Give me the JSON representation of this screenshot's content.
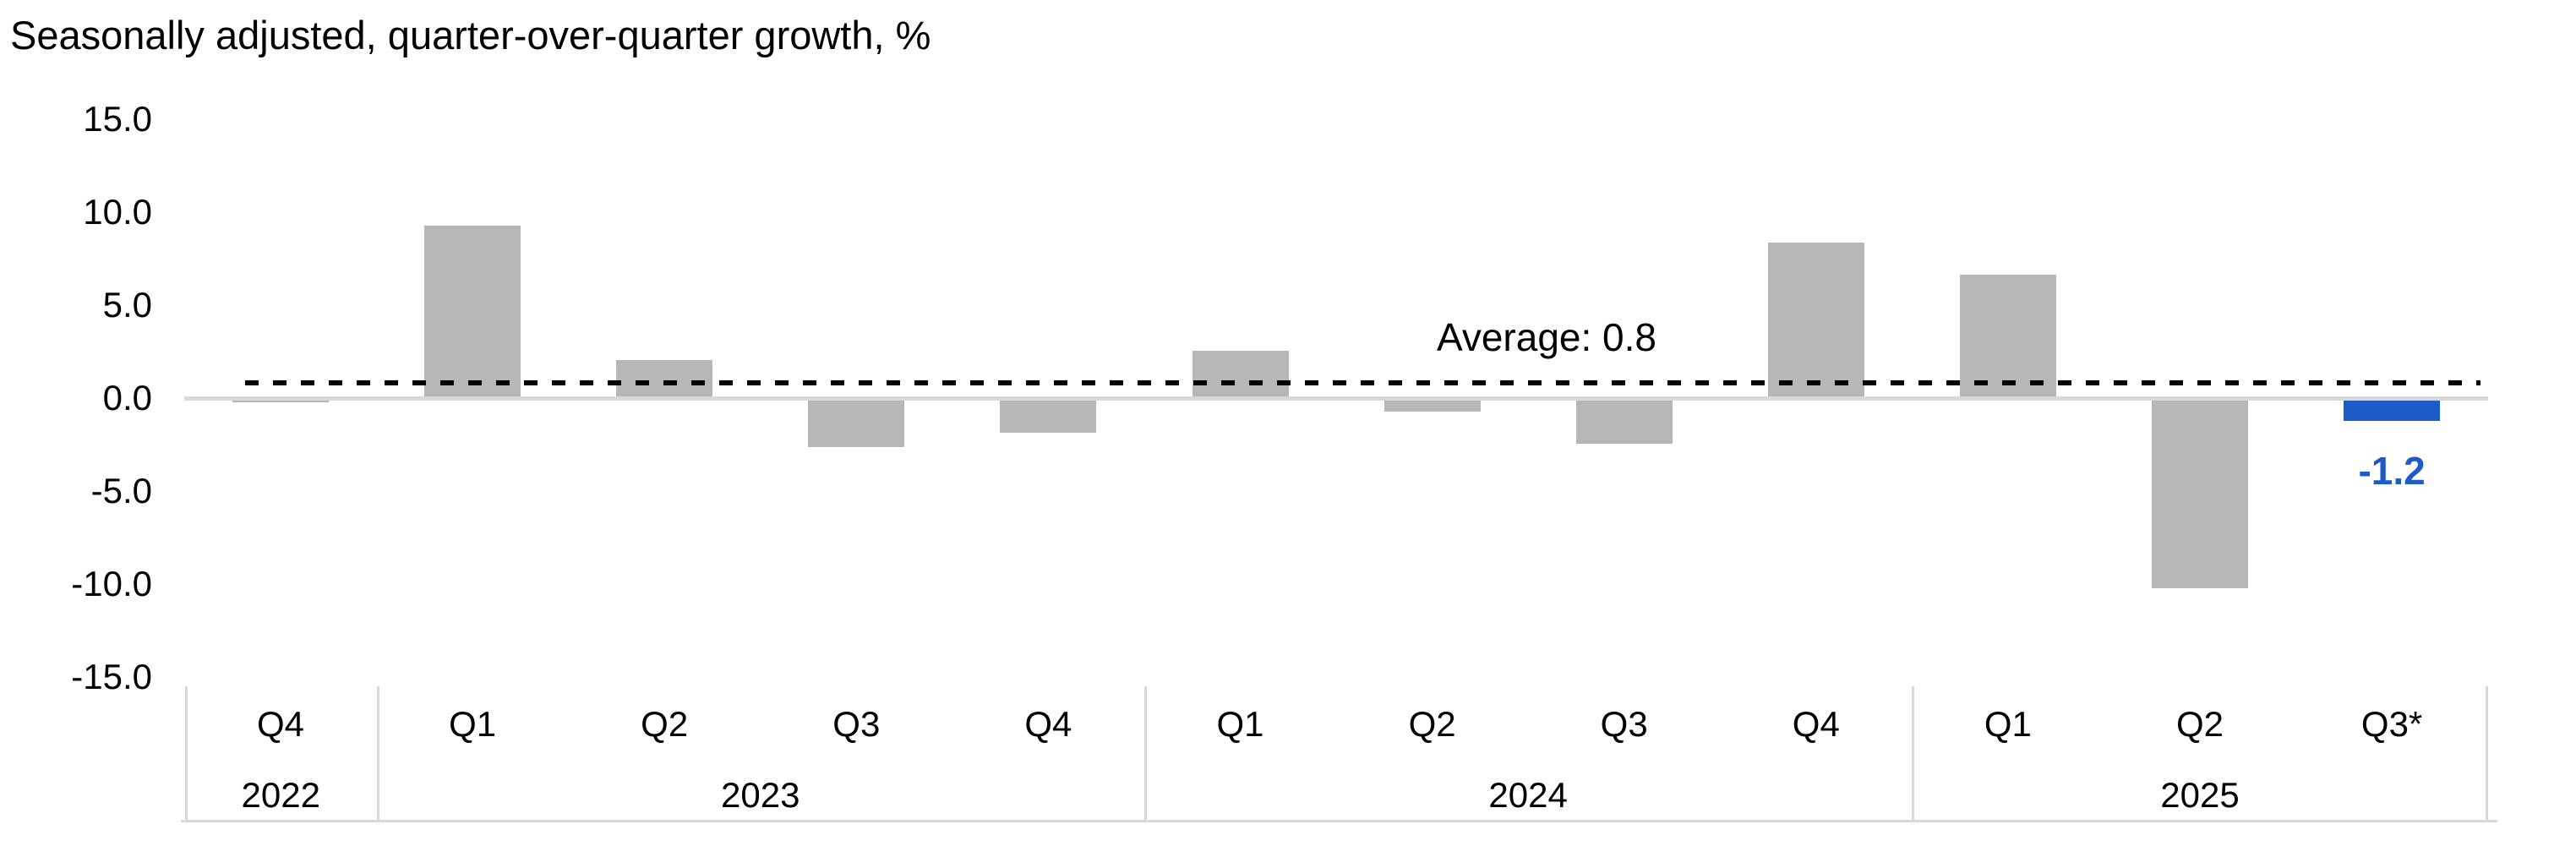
{
  "title": "Seasonally adjusted, quarter-over-quarter growth, %",
  "annotation": {
    "average_label": "Average: 0.8",
    "highlight_value_label": "-1.2"
  },
  "colors": {
    "bar": "#b7b7b7",
    "highlight": "#1f5bc8",
    "axis_gray": "#d9d9d9",
    "dashed_line": "#000000",
    "text": "#000000"
  },
  "chart_data": {
    "type": "bar",
    "title": "Seasonally adjusted, quarter-over-quarter growth, %",
    "categories": [
      "Q4",
      "Q1",
      "Q2",
      "Q3",
      "Q4",
      "Q1",
      "Q2",
      "Q3",
      "Q4",
      "Q1",
      "Q2",
      "Q3*"
    ],
    "values": [
      -0.2,
      9.3,
      2.1,
      -2.6,
      -1.8,
      2.6,
      -0.7,
      -2.4,
      8.4,
      6.7,
      -10.2,
      -1.2
    ],
    "year_groups": [
      {
        "year": "2022",
        "quarter_count": 1
      },
      {
        "year": "2023",
        "quarter_count": 4
      },
      {
        "year": "2024",
        "quarter_count": 4
      },
      {
        "year": "2025",
        "quarter_count": 3
      }
    ],
    "highlight_index": 11,
    "highlight_data_label": "-1.2",
    "average": 0.8,
    "average_annotation": "Average: 0.8",
    "ytick_labels": [
      "15.0",
      "10.0",
      "5.0",
      "0.0",
      "-5.0",
      "-10.0",
      "-15.0"
    ],
    "ylim": [
      -15.0,
      15.0
    ],
    "grid": false,
    "legend": false
  }
}
